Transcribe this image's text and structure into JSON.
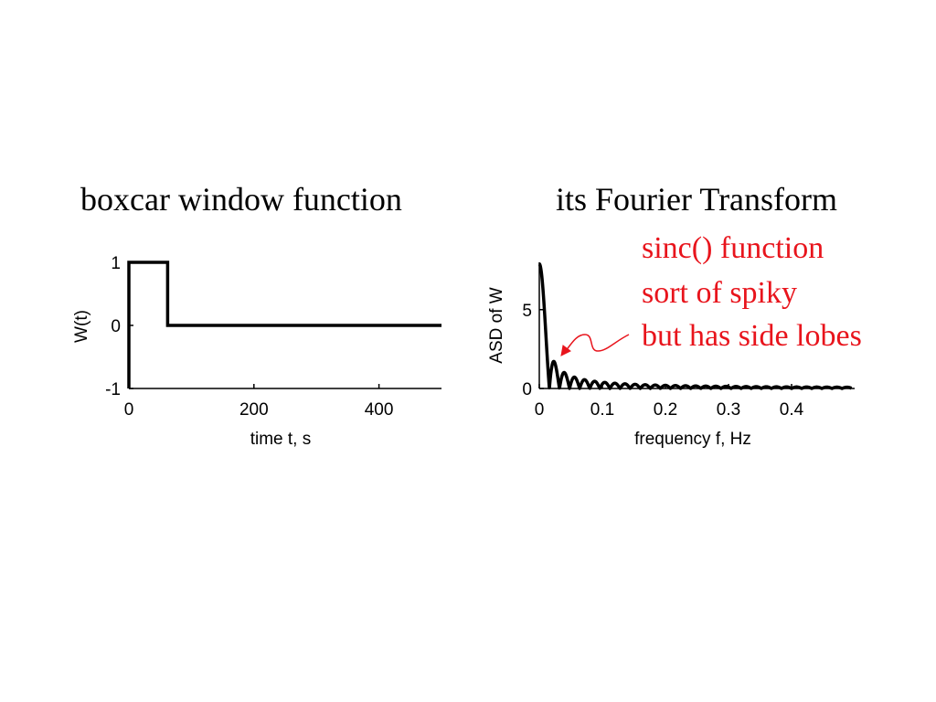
{
  "chart_data": [
    {
      "type": "line",
      "title": "boxcar window function",
      "xlabel": "time t, s",
      "ylabel": "W(t)",
      "xlim": [
        0,
        500
      ],
      "ylim": [
        -1,
        1
      ],
      "xticks": [
        "0",
        "200",
        "400"
      ],
      "xtick_values": [
        0,
        200,
        400
      ],
      "yticks": [
        "-1",
        "0",
        "1"
      ],
      "ytick_values": [
        -1,
        0,
        1
      ],
      "grid": false,
      "series": [
        {
          "x": [
            0,
            0,
            62,
            62,
            500
          ],
          "y": [
            -1,
            1,
            1,
            0,
            0
          ]
        }
      ]
    },
    {
      "type": "line",
      "title": "its Fourier Transform",
      "xlabel": "frequency f, Hz",
      "ylabel": "ASD of W",
      "xlim": [
        0,
        0.5
      ],
      "ylim": [
        0,
        8
      ],
      "xticks": [
        "0",
        "0.1",
        "0.2",
        "0.3",
        "0.4"
      ],
      "xtick_values": [
        0,
        0.1,
        0.2,
        0.3,
        0.4
      ],
      "yticks": [
        "0",
        "5"
      ],
      "ytick_values": [
        0,
        5
      ],
      "grid": false,
      "series": [
        {
          "main_lobe_peak": 7.9,
          "main_lobe_zero_hz": 0.016,
          "fmax": 0.495
        }
      ],
      "annotations": [
        "sinc() function",
        "sort of spiky",
        "but has side lobes"
      ],
      "annotation_color": "#e8141c"
    }
  ]
}
